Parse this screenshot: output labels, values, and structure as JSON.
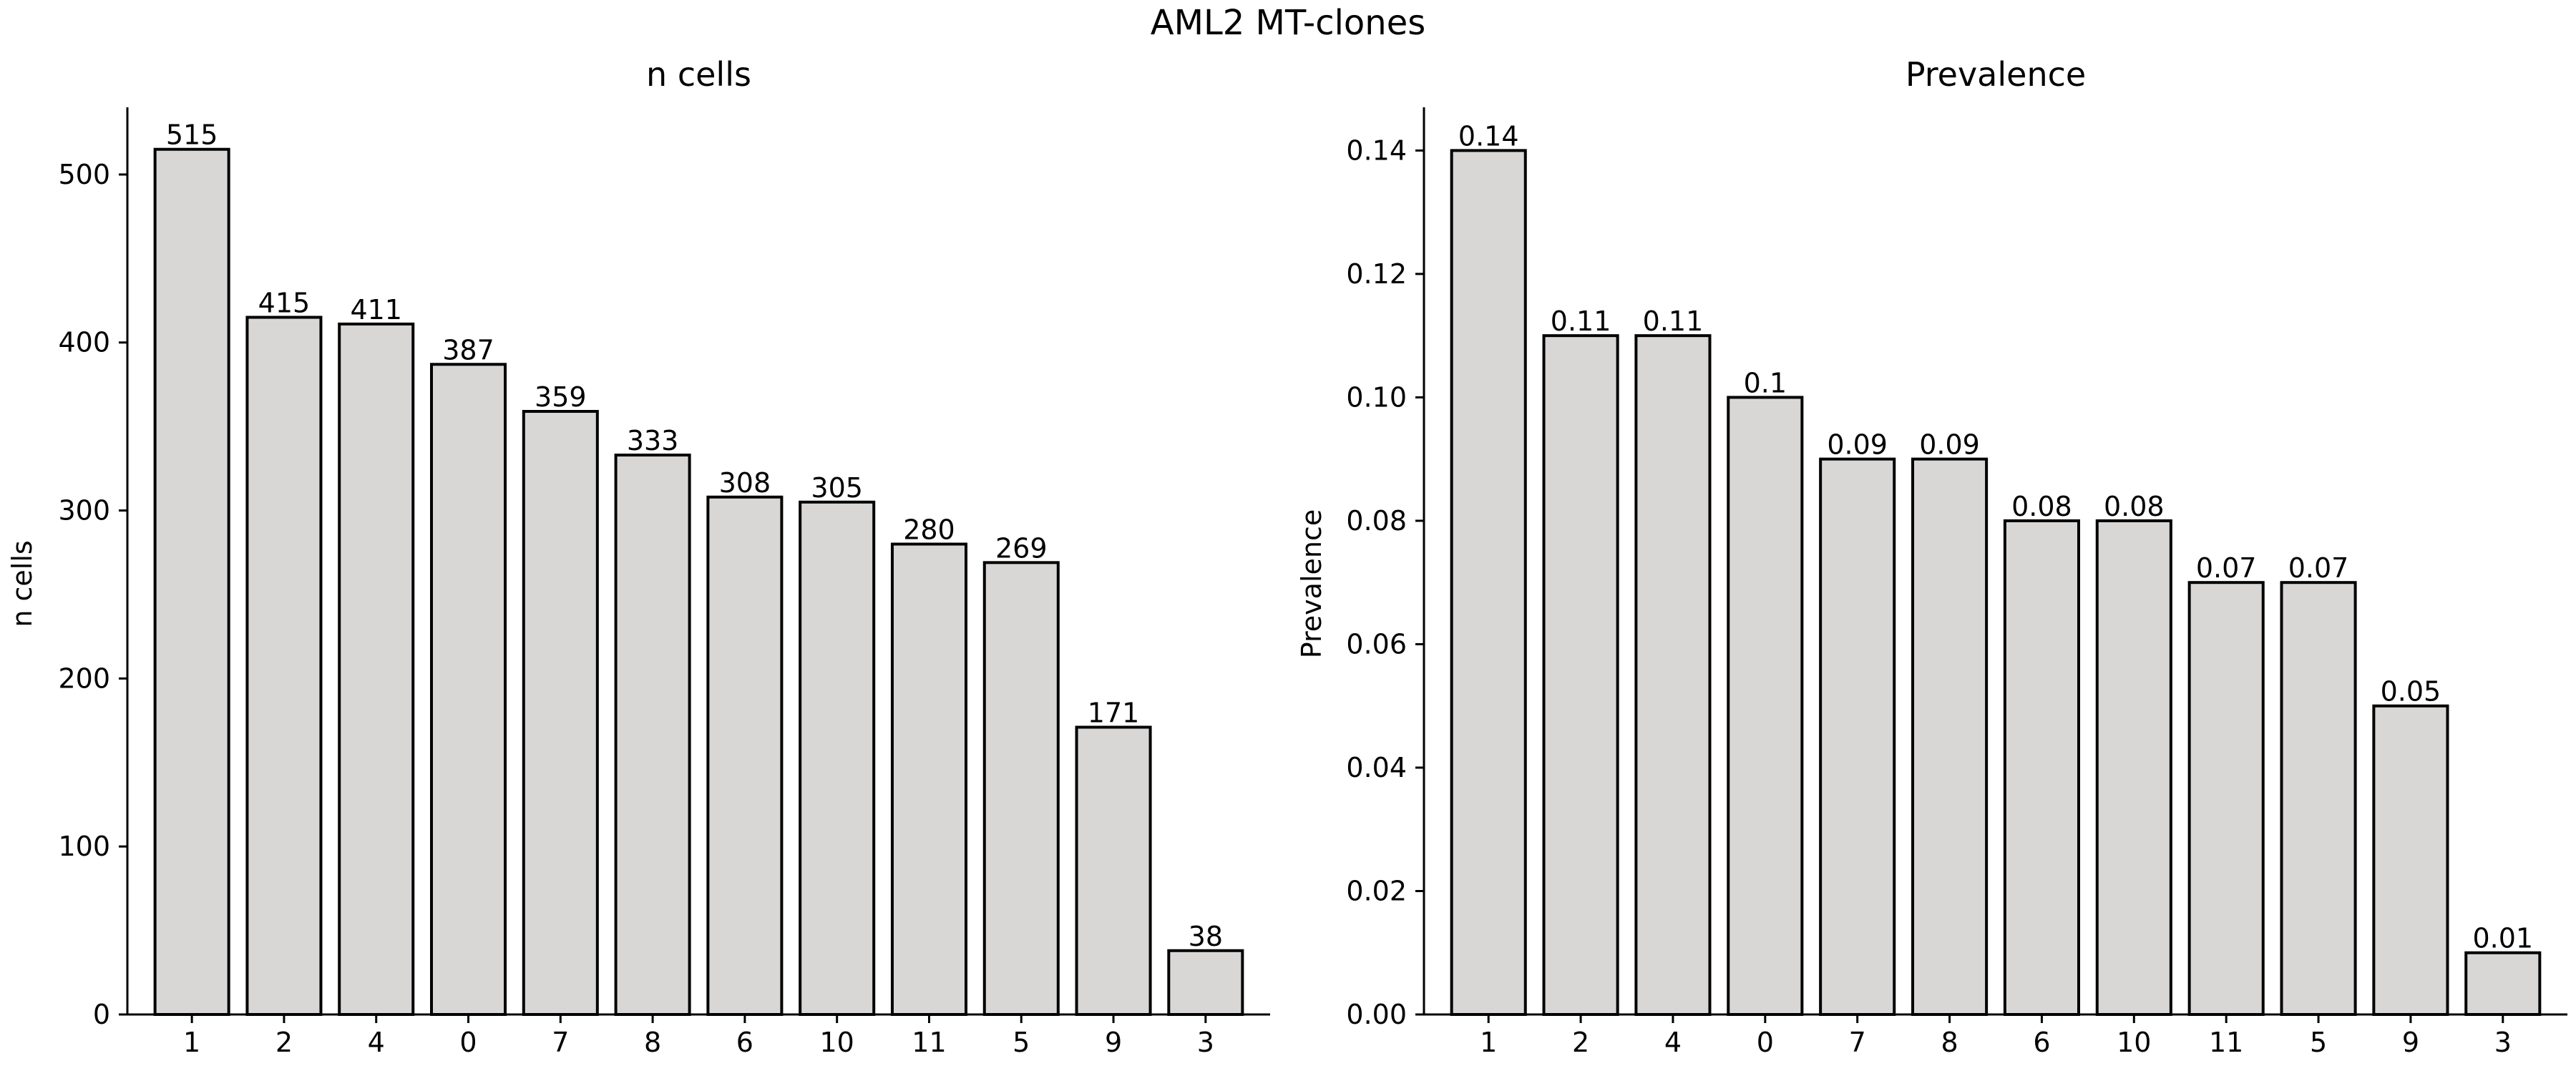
{
  "suptitle": "AML2 MT-clones",
  "colors": {
    "bar_fill": "#d9d6d6",
    "bar_edge": "#000000",
    "axis": "#000000"
  },
  "chart_data": [
    {
      "type": "bar",
      "title": "n cells",
      "xlabel": "",
      "ylabel": "n cells",
      "categories": [
        "1",
        "2",
        "4",
        "0",
        "7",
        "8",
        "6",
        "10",
        "11",
        "5",
        "9",
        "3"
      ],
      "values": [
        515,
        415,
        411,
        387,
        359,
        333,
        308,
        305,
        280,
        269,
        171,
        38
      ],
      "value_labels": [
        "515",
        "415",
        "411",
        "387",
        "359",
        "333",
        "308",
        "305",
        "280",
        "269",
        "171",
        "38"
      ],
      "ylim": [
        0,
        540
      ],
      "yticks": [
        0,
        100,
        200,
        300,
        400,
        500
      ],
      "ytick_labels": [
        "0",
        "100",
        "200",
        "300",
        "400",
        "500"
      ],
      "grid": false,
      "legend": "none"
    },
    {
      "type": "bar",
      "title": "Prevalence",
      "xlabel": "",
      "ylabel": "Prevalence",
      "categories": [
        "1",
        "2",
        "4",
        "0",
        "7",
        "8",
        "6",
        "10",
        "11",
        "5",
        "9",
        "3"
      ],
      "values": [
        0.14,
        0.11,
        0.11,
        0.1,
        0.09,
        0.09,
        0.08,
        0.08,
        0.07,
        0.07,
        0.05,
        0.01
      ],
      "value_labels": [
        "0.14",
        "0.11",
        "0.11",
        "0.1",
        "0.09",
        "0.09",
        "0.08",
        "0.08",
        "0.07",
        "0.07",
        "0.05",
        "0.01"
      ],
      "ylim": [
        0,
        0.147
      ],
      "yticks": [
        0,
        0.02,
        0.04,
        0.06,
        0.08,
        0.1,
        0.12,
        0.14
      ],
      "ytick_labels": [
        "0.00",
        "0.02",
        "0.04",
        "0.06",
        "0.08",
        "0.10",
        "0.12",
        "0.14"
      ],
      "grid": false,
      "legend": "none"
    }
  ]
}
